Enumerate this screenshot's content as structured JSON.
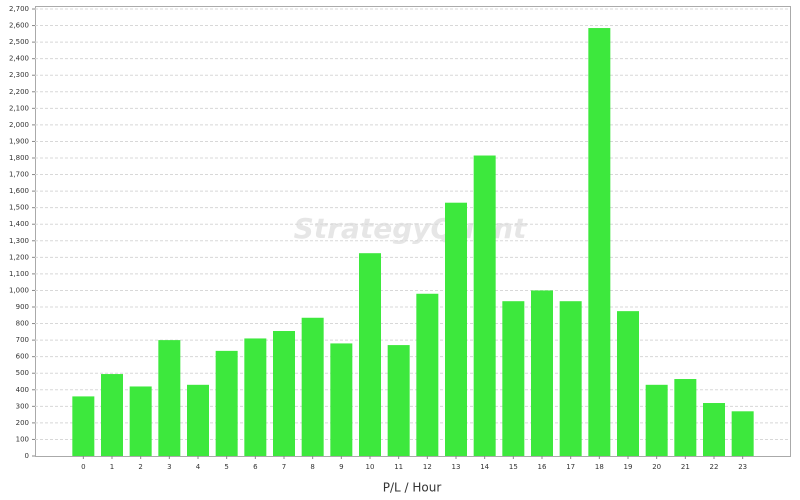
{
  "chart_data": {
    "type": "bar",
    "x_label": "P/L / Hour",
    "watermark": "StrategyQuant",
    "categories": [
      "0",
      "1",
      "2",
      "3",
      "4",
      "5",
      "6",
      "7",
      "8",
      "9",
      "10",
      "11",
      "12",
      "13",
      "14",
      "15",
      "16",
      "17",
      "18",
      "19",
      "20",
      "21",
      "22",
      "23"
    ],
    "values": [
      360,
      495,
      420,
      700,
      430,
      635,
      710,
      755,
      835,
      680,
      1225,
      670,
      980,
      1530,
      1815,
      935,
      1000,
      935,
      2585,
      875,
      430,
      465,
      320,
      270
    ],
    "color": "#3de83d",
    "ylim": [
      0,
      2700
    ],
    "yticks": [
      0,
      100,
      200,
      300,
      400,
      500,
      600,
      700,
      800,
      900,
      {
        "value": 1000,
        "label": "1,000"
      },
      {
        "value": 1100,
        "label": "1,100"
      },
      {
        "value": 1200,
        "label": "1,200"
      },
      {
        "value": 1300,
        "label": "1,300"
      },
      {
        "value": 1400,
        "label": "1,400"
      },
      {
        "value": 1500,
        "label": "1,500"
      },
      {
        "value": 1600,
        "label": "1,600"
      },
      {
        "value": 1700,
        "label": "1,700"
      },
      {
        "value": 1800,
        "label": "1,800"
      },
      {
        "value": 1900,
        "label": "1,900"
      },
      {
        "value": 2000,
        "label": "2,000"
      },
      {
        "value": 2100,
        "label": "2,100"
      },
      {
        "value": 2200,
        "label": "2,200"
      },
      {
        "value": 2300,
        "label": "2,300"
      },
      {
        "value": 2400,
        "label": "2,400"
      },
      {
        "value": 2500,
        "label": "2,500"
      },
      {
        "value": 2600,
        "label": "2,600"
      },
      {
        "value": 2700,
        "label": "2,700"
      }
    ],
    "grid": true
  }
}
